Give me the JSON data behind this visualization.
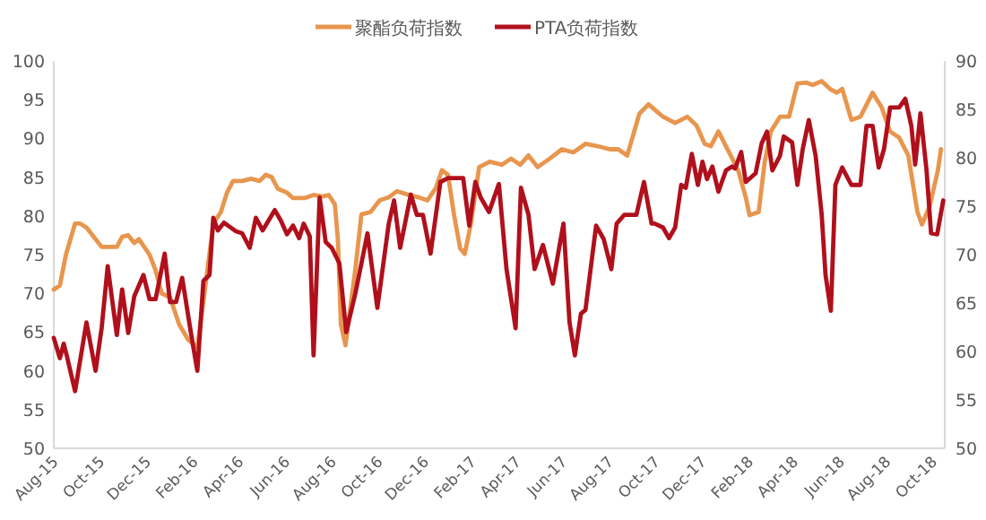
{
  "chart_data": {
    "type": "line",
    "legend": "top",
    "xlim": [
      "2015-08-01",
      "2018-10-17"
    ],
    "xticks": [
      {
        "value": "2015-08-01",
        "label": "Aug-15"
      },
      {
        "value": "2015-10-01",
        "label": "Oct-15"
      },
      {
        "value": "2015-12-01",
        "label": "Dec-15"
      },
      {
        "value": "2016-02-01",
        "label": "Feb-16"
      },
      {
        "value": "2016-04-01",
        "label": "Apr-16"
      },
      {
        "value": "2016-06-01",
        "label": "Jun-16"
      },
      {
        "value": "2016-08-01",
        "label": "Aug-16"
      },
      {
        "value": "2016-10-01",
        "label": "Oct-16"
      },
      {
        "value": "2016-12-01",
        "label": "Dec-16"
      },
      {
        "value": "2017-02-01",
        "label": "Feb-17"
      },
      {
        "value": "2017-04-01",
        "label": "Apr-17"
      },
      {
        "value": "2017-06-01",
        "label": "Jun-17"
      },
      {
        "value": "2017-08-01",
        "label": "Aug-17"
      },
      {
        "value": "2017-10-01",
        "label": "Oct-17"
      },
      {
        "value": "2017-12-01",
        "label": "Dec-17"
      },
      {
        "value": "2018-02-01",
        "label": "Feb-18"
      },
      {
        "value": "2018-04-01",
        "label": "Apr-18"
      },
      {
        "value": "2018-06-01",
        "label": "Jun-18"
      },
      {
        "value": "2018-08-01",
        "label": "Aug-18"
      },
      {
        "value": "2018-10-01",
        "label": "Oct-18"
      }
    ],
    "ylim": [
      50,
      100
    ],
    "yticks": [
      50,
      55,
      60,
      65,
      70,
      75,
      80,
      85,
      90,
      95,
      100
    ],
    "y2lim": [
      50,
      90
    ],
    "y2ticks": [
      50,
      55,
      60,
      65,
      70,
      75,
      80,
      85,
      90
    ],
    "series": [
      {
        "name": "聚酯负荷指数",
        "color": "#e8964e",
        "x": [
          "2015-08-01",
          "2015-08-09",
          "2015-08-17",
          "2015-08-29",
          "2015-09-05",
          "2015-09-13",
          "2015-09-25",
          "2015-10-03",
          "2015-10-15",
          "2015-10-23",
          "2015-10-30",
          "2015-11-07",
          "2015-11-15",
          "2015-11-21",
          "2015-12-05",
          "2015-12-13",
          "2015-12-21",
          "2016-01-01",
          "2016-01-13",
          "2016-01-25",
          "2016-02-06",
          "2016-02-18",
          "2016-02-27",
          "2016-03-08",
          "2016-03-16",
          "2016-03-24",
          "2016-04-05",
          "2016-04-17",
          "2016-04-28",
          "2016-05-06",
          "2016-05-14",
          "2016-05-22",
          "2016-06-03",
          "2016-06-11",
          "2016-06-26",
          "2016-07-08",
          "2016-07-20",
          "2016-07-28",
          "2016-08-05",
          "2016-08-09",
          "2016-08-13",
          "2016-08-19",
          "2016-09-01",
          "2016-09-09",
          "2016-09-21",
          "2016-10-03",
          "2016-10-15",
          "2016-10-26",
          "2016-11-07",
          "2016-11-23",
          "2016-12-05",
          "2016-12-16",
          "2016-12-24",
          "2017-01-01",
          "2017-01-09",
          "2017-01-17",
          "2017-01-23",
          "2017-01-31",
          "2017-02-11",
          "2017-02-25",
          "2017-03-13",
          "2017-03-25",
          "2017-04-06",
          "2017-04-17",
          "2017-04-29",
          "2017-05-15",
          "2017-05-31",
          "2017-06-15",
          "2017-07-01",
          "2017-07-17",
          "2017-08-02",
          "2017-08-13",
          "2017-08-25",
          "2017-09-10",
          "2017-09-22",
          "2017-10-11",
          "2017-10-27",
          "2017-11-12",
          "2017-11-24",
          "2017-12-05",
          "2017-12-13",
          "2017-12-23",
          "2018-01-06",
          "2018-01-18",
          "2018-01-28",
          "2018-02-02",
          "2018-02-14",
          "2018-02-22",
          "2018-03-02",
          "2018-03-14",
          "2018-03-26",
          "2018-04-06",
          "2018-04-18",
          "2018-04-26",
          "2018-05-08",
          "2018-05-20",
          "2018-05-28",
          "2018-06-04",
          "2018-06-16",
          "2018-06-28",
          "2018-07-14",
          "2018-07-26",
          "2018-08-06",
          "2018-08-18",
          "2018-08-30",
          "2018-09-11",
          "2018-09-17",
          "2018-09-27",
          "2018-10-08",
          "2018-10-12"
        ],
        "values": [
          70.5,
          71,
          75,
          79,
          79,
          78.5,
          77,
          76,
          76,
          76,
          77.3,
          77.5,
          76.5,
          77,
          75,
          73,
          70,
          69.5,
          66,
          64,
          63,
          72,
          79,
          80.5,
          83,
          84.5,
          84.5,
          84.8,
          84.5,
          85.3,
          85,
          83.5,
          83,
          82.3,
          82.3,
          82.7,
          82.5,
          82.7,
          81.5,
          77,
          66,
          63.3,
          73.1,
          80.2,
          80.5,
          82,
          82.4,
          83.2,
          82.8,
          82.4,
          82,
          83.6,
          85.9,
          85.3,
          80.1,
          75.8,
          75.1,
          78.9,
          86.3,
          87,
          86.6,
          87.4,
          86.6,
          87.8,
          86.3,
          87.4,
          88.6,
          88.2,
          89.3,
          89,
          88.6,
          88.6,
          87.8,
          93.2,
          94.4,
          92.8,
          92,
          92.8,
          91.7,
          89.3,
          89,
          90.9,
          88.2,
          85.9,
          82.4,
          80.1,
          80.5,
          87,
          90.9,
          92.8,
          92.8,
          97.1,
          97.2,
          96.9,
          97.4,
          96.3,
          95.9,
          96.4,
          92.4,
          92.8,
          95.9,
          94,
          90.9,
          90.1,
          87.8,
          80.5,
          78.9,
          81.2,
          85.9,
          88.6
        ]
      },
      {
        "name": "PTA负荷指数",
        "color": "#b0101c",
        "axis": "y2",
        "x": [
          "2015-08-01",
          "2015-08-09",
          "2015-08-14",
          "2015-08-18",
          "2015-08-29",
          "2015-09-13",
          "2015-09-25",
          "2015-10-03",
          "2015-10-11",
          "2015-10-23",
          "2015-10-30",
          "2015-11-07",
          "2015-11-15",
          "2015-11-27",
          "2015-12-05",
          "2015-12-13",
          "2015-12-25",
          "2016-01-01",
          "2016-01-09",
          "2016-01-17",
          "2016-01-29",
          "2016-02-06",
          "2016-02-14",
          "2016-02-22",
          "2016-02-27",
          "2016-03-04",
          "2016-03-12",
          "2016-03-28",
          "2016-04-05",
          "2016-04-15",
          "2016-04-23",
          "2016-05-02",
          "2016-05-18",
          "2016-05-26",
          "2016-06-03",
          "2016-06-11",
          "2016-06-19",
          "2016-06-25",
          "2016-07-03",
          "2016-07-08",
          "2016-07-16",
          "2016-07-24",
          "2016-08-01",
          "2016-08-11",
          "2016-08-20",
          "2016-09-01",
          "2016-09-17",
          "2016-09-30",
          "2016-10-15",
          "2016-10-22",
          "2016-10-30",
          "2016-11-13",
          "2016-11-21",
          "2016-11-29",
          "2016-12-09",
          "2016-12-22",
          "2017-01-01",
          "2017-01-21",
          "2017-01-29",
          "2017-02-06",
          "2017-02-13",
          "2017-02-24",
          "2017-03-09",
          "2017-03-19",
          "2017-03-31",
          "2017-04-07",
          "2017-04-17",
          "2017-04-25",
          "2017-05-06",
          "2017-05-19",
          "2017-06-02",
          "2017-06-10",
          "2017-06-17",
          "2017-06-25",
          "2017-07-01",
          "2017-07-15",
          "2017-07-25",
          "2017-08-04",
          "2017-08-11",
          "2017-08-21",
          "2017-08-29",
          "2017-09-06",
          "2017-09-16",
          "2017-09-26",
          "2017-09-30",
          "2017-10-11",
          "2017-10-19",
          "2017-10-27",
          "2017-11-04",
          "2017-11-10",
          "2017-11-18",
          "2017-11-26",
          "2017-12-02",
          "2017-12-08",
          "2017-12-15",
          "2017-12-23",
          "2018-01-02",
          "2018-01-10",
          "2018-01-14",
          "2018-01-22",
          "2018-01-28",
          "2018-02-10",
          "2018-02-18",
          "2018-02-25",
          "2018-03-04",
          "2018-03-14",
          "2018-03-19",
          "2018-03-30",
          "2018-04-06",
          "2018-04-13",
          "2018-04-21",
          "2018-04-30",
          "2018-05-08",
          "2018-05-13",
          "2018-05-20",
          "2018-05-26",
          "2018-06-04",
          "2018-06-16",
          "2018-06-28",
          "2018-07-06",
          "2018-07-14",
          "2018-07-22",
          "2018-07-29",
          "2018-08-06",
          "2018-08-18",
          "2018-08-26",
          "2018-09-03",
          "2018-09-08",
          "2018-09-15",
          "2018-09-23",
          "2018-09-29",
          "2018-10-07",
          "2018-10-15"
        ],
        "values": [
          61.4,
          59.3,
          60.8,
          59.6,
          55.9,
          63,
          58,
          62.4,
          68.8,
          61.7,
          66.4,
          61.9,
          65.7,
          67.9,
          65.4,
          65.4,
          70.1,
          65.1,
          65.1,
          67.6,
          61.7,
          58,
          67.3,
          67.9,
          73.8,
          72.5,
          73.3,
          72.4,
          72.2,
          70.7,
          73.8,
          72.5,
          74.6,
          73.5,
          72.1,
          73,
          71.7,
          73.2,
          71.9,
          59.6,
          75.9,
          71.3,
          70.7,
          69.1,
          62,
          66,
          72.2,
          64.5,
          73.2,
          75.6,
          70.7,
          76.2,
          74.1,
          74.1,
          70.1,
          77.5,
          77.9,
          77.9,
          73,
          77.5,
          75.9,
          74.4,
          77.3,
          68.5,
          62.4,
          76.9,
          74.1,
          68.5,
          71,
          67,
          73.2,
          63,
          59.6,
          63.9,
          64.3,
          73,
          71.6,
          68.5,
          73.2,
          74.1,
          74.1,
          74.1,
          77.5,
          73.2,
          73.2,
          72.8,
          71.7,
          72.8,
          77.2,
          76.9,
          80.4,
          77.2,
          79.6,
          77.8,
          79.1,
          76.5,
          78.7,
          79.1,
          78.9,
          80.6,
          77.5,
          78.4,
          81.5,
          82.7,
          78.7,
          80.2,
          82.2,
          81.6,
          77.2,
          80.9,
          83.9,
          80.2,
          74.1,
          67.9,
          64.2,
          77.2,
          79,
          77.2,
          77.2,
          83.3,
          83.3,
          79,
          80.9,
          85.2,
          85.2,
          86.1,
          83.3,
          79.3,
          84.6,
          78.7,
          72.2,
          72.1,
          75.6
        ]
      }
    ]
  }
}
